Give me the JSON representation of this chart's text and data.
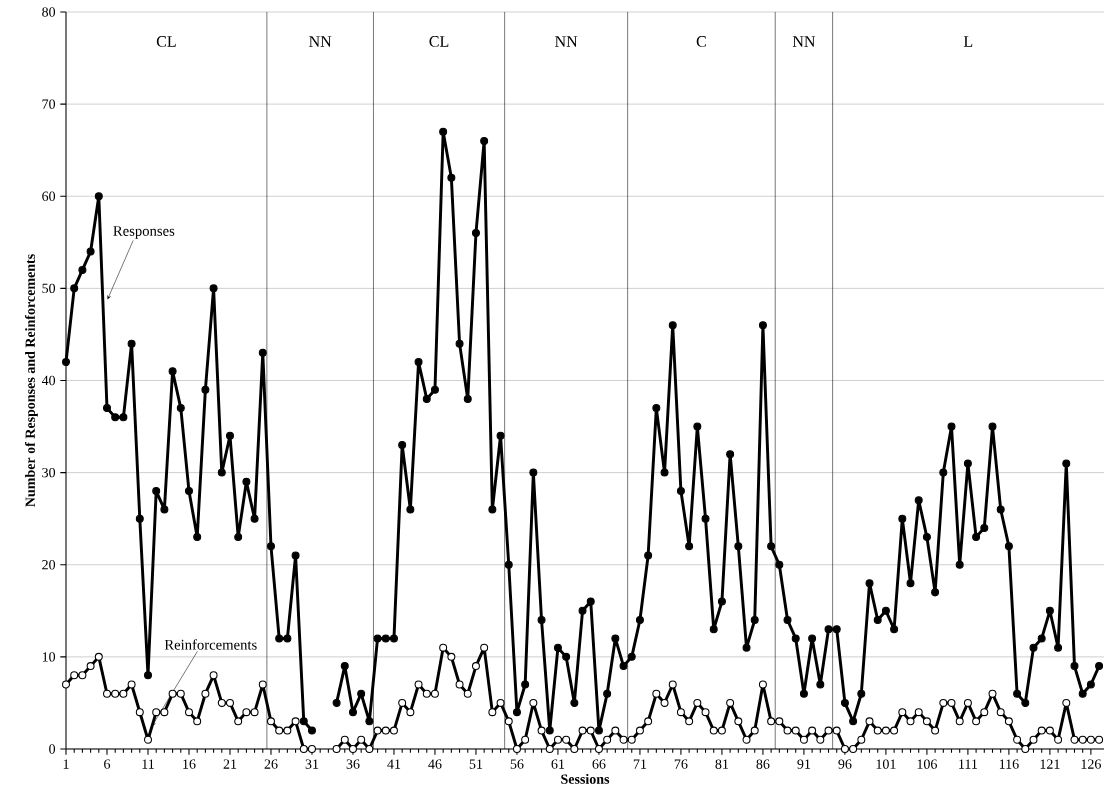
{
  "chart_data": {
    "type": "line",
    "xlabel": "Sessions",
    "ylabel": "Number of Responses and Reinforcements",
    "x": [
      1,
      2,
      3,
      4,
      5,
      6,
      7,
      8,
      9,
      10,
      11,
      12,
      13,
      14,
      15,
      16,
      17,
      18,
      19,
      20,
      21,
      22,
      23,
      24,
      25,
      26,
      27,
      28,
      29,
      30,
      31,
      32,
      33,
      34,
      35,
      36,
      37,
      38,
      39,
      40,
      41,
      42,
      43,
      44,
      45,
      46,
      47,
      48,
      49,
      50,
      51,
      52,
      53,
      54,
      55,
      56,
      57,
      58,
      59,
      60,
      61,
      62,
      63,
      64,
      65,
      66,
      67,
      68,
      69,
      70,
      71,
      72,
      73,
      74,
      75,
      76,
      77,
      78,
      79,
      80,
      81,
      82,
      83,
      84,
      85,
      86,
      87,
      88,
      89,
      90,
      91,
      92,
      93,
      94,
      95,
      96,
      97,
      98,
      99,
      100,
      101,
      102,
      103,
      104,
      105,
      106,
      107,
      108,
      109,
      110,
      111,
      112,
      113,
      114,
      115,
      116,
      117,
      118,
      119,
      120,
      121,
      122,
      123,
      124,
      125,
      126,
      127
    ],
    "series": [
      {
        "color": "#000000",
        "marker": "circle",
        "values": [
          42,
          50,
          52,
          54,
          60,
          37,
          36,
          36,
          44,
          25,
          8,
          28,
          26,
          41,
          37,
          28,
          23,
          39,
          50,
          30,
          34,
          23,
          29,
          25,
          43,
          22,
          12,
          12,
          21,
          3,
          2,
          null,
          null,
          5,
          9,
          4,
          6,
          3,
          12,
          12,
          12,
          33,
          26,
          42,
          38,
          39,
          67,
          62,
          44,
          38,
          56,
          66,
          26,
          34,
          20,
          4,
          7,
          30,
          14,
          2,
          11,
          10,
          5,
          15,
          16,
          2,
          6,
          12,
          9,
          10,
          14,
          21,
          37,
          30,
          46,
          28,
          22,
          35,
          25,
          13,
          16,
          32,
          22,
          11,
          14,
          46,
          22,
          20,
          14,
          12,
          6,
          12,
          7,
          13,
          13,
          5,
          3,
          6,
          18,
          14,
          15,
          13,
          25,
          18,
          27,
          23,
          17,
          30,
          35,
          20,
          31,
          23,
          24,
          35,
          26,
          22,
          6,
          5,
          11,
          12,
          15,
          11,
          31,
          9,
          6,
          7,
          9
        ]
      },
      {
        "color": "#000000",
        "marker": "circle",
        "values": [
          7,
          8,
          8,
          9,
          10,
          6,
          6,
          6,
          7,
          4,
          1,
          4,
          4,
          6,
          6,
          4,
          3,
          6,
          8,
          5,
          5,
          3,
          4,
          4,
          7,
          3,
          2,
          2,
          3,
          0,
          0,
          null,
          null,
          0,
          1,
          0,
          1,
          0,
          2,
          2,
          2,
          5,
          4,
          7,
          6,
          6,
          11,
          10,
          7,
          6,
          9,
          11,
          4,
          5,
          3,
          0,
          1,
          5,
          2,
          0,
          1,
          1,
          0,
          2,
          2,
          0,
          1,
          2,
          1,
          1,
          2,
          3,
          6,
          5,
          7,
          4,
          3,
          5,
          4,
          2,
          2,
          5,
          3,
          1,
          2,
          7,
          3,
          3,
          2,
          2,
          1,
          2,
          1,
          2,
          2,
          0,
          0,
          1,
          3,
          2,
          2,
          2,
          4,
          3,
          4,
          3,
          2,
          5,
          5,
          3,
          5,
          3,
          4,
          6,
          4,
          3,
          1,
          0,
          1,
          2,
          2,
          1,
          5,
          1,
          1,
          1,
          1
        ]
      }
    ],
    "xlim": [
      1,
      127.6
    ],
    "ylim": [
      0,
      80
    ],
    "xticks": [
      1,
      6,
      11,
      16,
      21,
      26,
      31,
      36,
      41,
      46,
      51,
      56,
      61,
      66,
      71,
      76,
      81,
      86,
      91,
      96,
      101,
      106,
      111,
      116,
      121,
      126
    ],
    "yticks": [
      0,
      10,
      20,
      30,
      40,
      50,
      60,
      70,
      80
    ],
    "grid": "y",
    "line_style": "solid",
    "ref_lines": [
      {
        "axis": "x",
        "value": 25.5,
        "color": "#000000"
      },
      {
        "axis": "x",
        "value": 38.5,
        "color": "#000000"
      },
      {
        "axis": "x",
        "value": 54.5,
        "color": "#000000"
      },
      {
        "axis": "x",
        "value": 69.5,
        "color": "#000000"
      },
      {
        "axis": "x",
        "value": 87.5,
        "color": "#000000"
      },
      {
        "axis": "x",
        "value": 94.5,
        "color": "#000000"
      }
    ],
    "annotations": [
      "CL",
      "NN",
      "CL",
      "NN",
      "C",
      "NN",
      "L",
      "Responses",
      {
        "text": "Reinforcements",
        "x": 11.5,
        "y": 2.5
      }
    ]
  }
}
